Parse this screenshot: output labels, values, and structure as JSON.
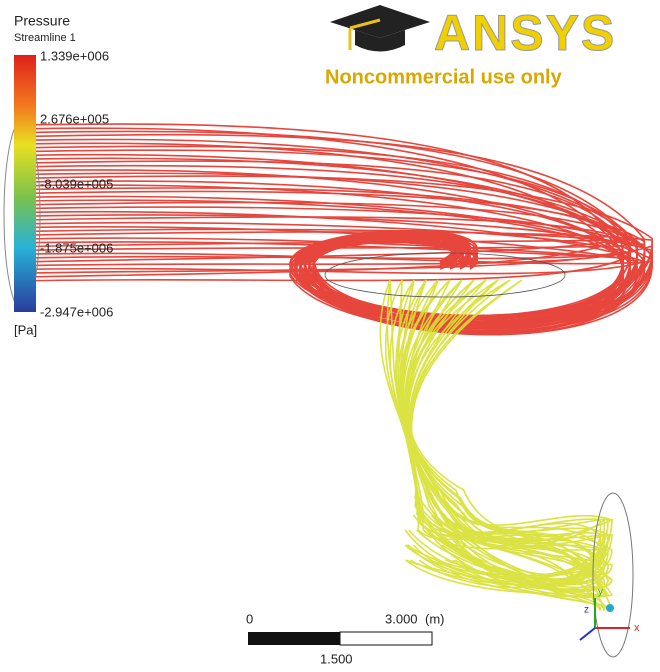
{
  "legend": {
    "title": "Pressure",
    "subtitle": "Streamline 1",
    "labels": [
      "1.339e+006",
      "2.676e+005",
      "-8.039e+005",
      "-1.875e+006",
      "-2.947e+006"
    ],
    "unit": "[Pa]"
  },
  "logo": {
    "brand": "ANSYS",
    "note": "Noncommercial use only"
  },
  "scale_bar": {
    "start": "0",
    "end": "3.000",
    "unit": "(m)",
    "middle": "1.500"
  },
  "axes": {
    "x": "x",
    "y": "y",
    "z": "z"
  }
}
